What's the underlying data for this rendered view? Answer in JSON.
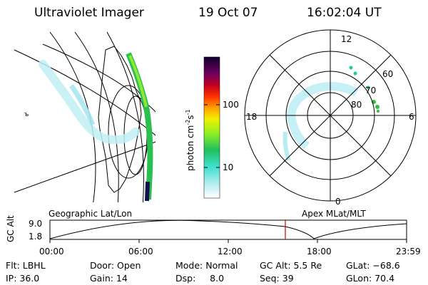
{
  "header": {
    "title": "Ultraviolet Imager",
    "date": "19 Oct 07",
    "time": "16:02:04 UT"
  },
  "colorbar": {
    "label": "photon cm",
    "label_exp1": "-2",
    "label_mid": "s",
    "label_exp2": "-1",
    "ticks": [
      "100",
      "10"
    ]
  },
  "polar": {
    "lat_labels": [
      "60",
      "70",
      "80"
    ],
    "mlt_labels": {
      "top": "12",
      "left": "18",
      "right": "6",
      "bottom": "0"
    }
  },
  "panel_labels": {
    "left": "Geographic Lat/Lon",
    "right": "Apex MLat/MLT"
  },
  "altitude_plot": {
    "ylabel": "GC Alt",
    "ymax": "9.0",
    "ymin": "1.8",
    "time_ticks": [
      "00:00",
      "06:00",
      "12:00",
      "18:00",
      "23:59"
    ],
    "marker_color": "#d00000"
  },
  "info": {
    "flt": "Flt: LBHL",
    "ip": "IP: 36.0",
    "door": "Door: Open",
    "gain": "Gain: 14",
    "mode": "Mode: Normal",
    "dsp_label": "Dsp:",
    "dsp_value": "8.0",
    "gcalt": "GC Alt: 5.5 Re",
    "seq": "Seq: 39",
    "glat": "GLat: −68.6",
    "glon": "GLon: 70.4"
  }
}
